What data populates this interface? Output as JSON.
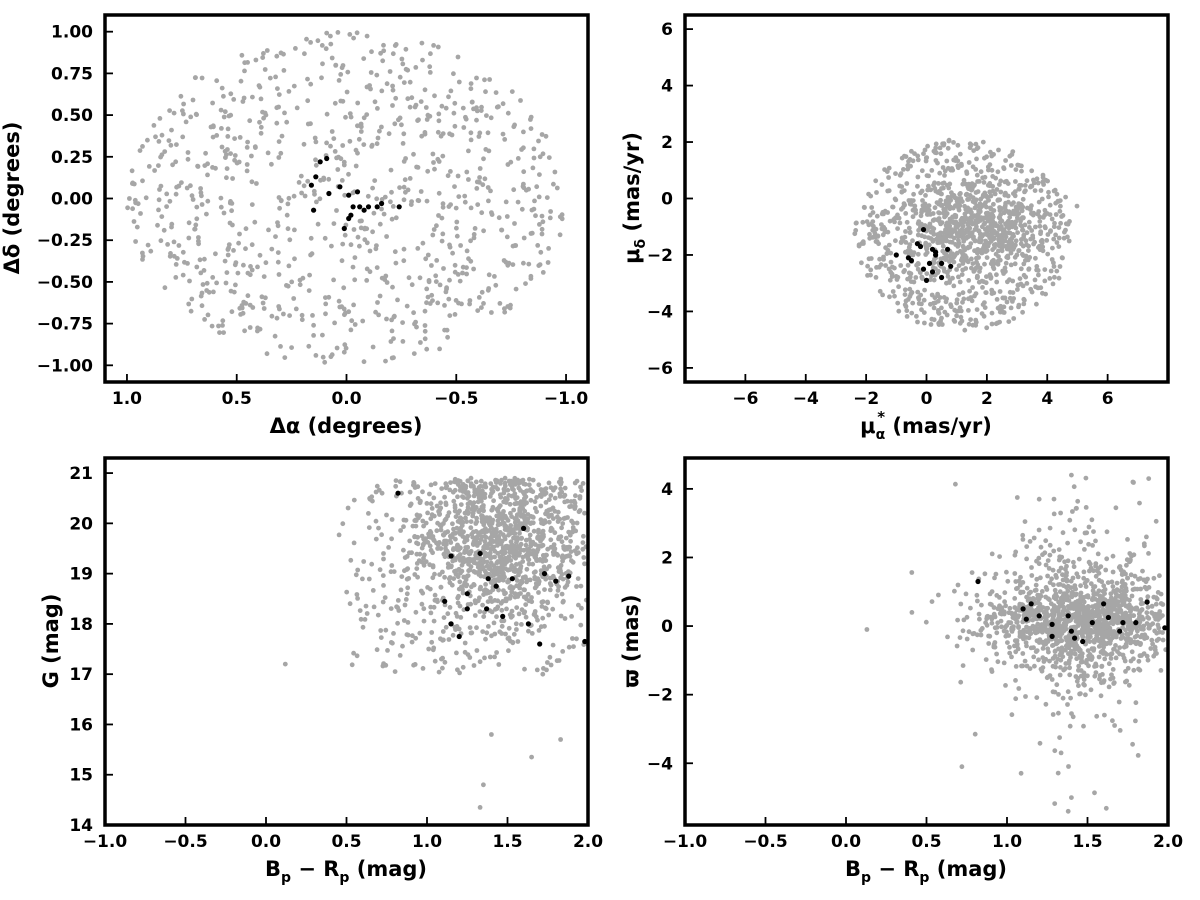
{
  "chart_data": [
    {
      "id": "position",
      "type": "scatter",
      "xlabel": "Δα (degrees)",
      "ylabel": "Δδ (degrees)",
      "xlim": [
        1.1,
        -1.1
      ],
      "ylim": [
        -1.1,
        1.1
      ],
      "xticks": [
        1.0,
        0.5,
        0.0,
        -0.5,
        -1.0
      ],
      "xtick_labels": [
        "1.0",
        "0.5",
        "0.0",
        "−0.5",
        "−1.0"
      ],
      "yticks": [
        -1.0,
        -0.75,
        -0.5,
        -0.25,
        0.0,
        0.25,
        0.5,
        0.75,
        1.0
      ],
      "ytick_labels": [
        "−1.00",
        "−0.75",
        "−0.50",
        "−0.25",
        "0.00",
        "0.25",
        "0.50",
        "0.75",
        "1.00"
      ],
      "grid": false,
      "series": [
        {
          "role": "field",
          "color": "#a6a6a6",
          "distribution": {
            "kind": "disk",
            "n": 900,
            "center": [
              0,
              0
            ],
            "radius": 1.0,
            "seed": 11
          }
        },
        {
          "role": "members",
          "color": "#000000",
          "points": [
            [
              0.12,
              0.22
            ],
            [
              0.09,
              0.24
            ],
            [
              0.14,
              0.13
            ],
            [
              0.16,
              0.08
            ],
            [
              0.15,
              -0.07
            ],
            [
              0.08,
              0.03
            ],
            [
              0.03,
              0.07
            ],
            [
              -0.01,
              0.02
            ],
            [
              -0.05,
              0.04
            ],
            [
              -0.03,
              -0.05
            ],
            [
              -0.02,
              -0.1
            ],
            [
              -0.01,
              -0.12
            ],
            [
              0.01,
              -0.18
            ],
            [
              -0.06,
              -0.05
            ],
            [
              -0.08,
              -0.07
            ],
            [
              -0.1,
              -0.05
            ],
            [
              -0.14,
              -0.05
            ],
            [
              -0.16,
              -0.03
            ],
            [
              -0.24,
              -0.05
            ]
          ]
        }
      ]
    },
    {
      "id": "proper-motion",
      "type": "scatter",
      "xlabel_main": "μ",
      "xlabel_sub": "α",
      "xlabel_sup": "*",
      "xlabel_unit": " (mas/yr)",
      "ylabel_main": "μ",
      "ylabel_sub": "δ",
      "ylabel_unit": " (mas/yr)",
      "xlim": [
        -8,
        8
      ],
      "ylim": [
        -6.5,
        6.5
      ],
      "xticks": [
        -6,
        -4,
        -2,
        0,
        2,
        4,
        6
      ],
      "xtick_labels": [
        "−6",
        "−4",
        "−2",
        "0",
        "2",
        "4",
        "6"
      ],
      "yticks": [
        -6,
        -4,
        -2,
        0,
        2,
        4,
        6
      ],
      "ytick_labels": [
        "−6",
        "−4",
        "−2",
        "0",
        "2",
        "4",
        "6"
      ],
      "grid": false,
      "series": [
        {
          "role": "field",
          "color": "#a6a6a6",
          "distribution": {
            "kind": "ellipse-mix",
            "n": 1300,
            "center": [
              1.2,
              -1.3
            ],
            "radii": [
              3.6,
              3.4
            ],
            "core": [
              1.6,
              -1.0
            ],
            "seed": 23
          }
        },
        {
          "role": "members",
          "color": "#000000",
          "points": [
            [
              -0.1,
              -1.1
            ],
            [
              -0.3,
              -1.6
            ],
            [
              0.2,
              -1.8
            ],
            [
              0.7,
              -1.8
            ],
            [
              0.3,
              -2.0
            ],
            [
              -0.6,
              -2.1
            ],
            [
              -1.0,
              -2.0
            ],
            [
              0.1,
              -2.3
            ],
            [
              0.5,
              -2.3
            ],
            [
              0.8,
              -2.4
            ],
            [
              -0.1,
              -2.5
            ],
            [
              0.2,
              -2.6
            ],
            [
              0.5,
              -2.8
            ],
            [
              0.0,
              -2.9
            ],
            [
              -0.5,
              -2.2
            ],
            [
              -0.2,
              -1.7
            ],
            [
              0.3,
              -1.9
            ]
          ]
        }
      ]
    },
    {
      "id": "cmd",
      "type": "scatter",
      "xlabel_main": "B",
      "xlabel_sub": "p",
      "xlabel_mid": " − R",
      "xlabel_sub2": "p",
      "xlabel_unit": " (mag)",
      "ylabel": "G (mag)",
      "xlim": [
        -1.0,
        2.0
      ],
      "ylim": [
        14,
        21.3
      ],
      "xticks": [
        -1.0,
        -0.5,
        0.0,
        0.5,
        1.0,
        1.5,
        2.0
      ],
      "xtick_labels": [
        "−1.0",
        "−0.5",
        "0.0",
        "0.5",
        "1.0",
        "1.5",
        "2.0"
      ],
      "yticks": [
        14,
        15,
        16,
        17,
        18,
        19,
        20,
        21
      ],
      "ytick_labels": [
        "14",
        "15",
        "16",
        "17",
        "18",
        "19",
        "20",
        "21"
      ],
      "grid": false,
      "series": [
        {
          "role": "field",
          "color": "#a6a6a6",
          "distribution": {
            "kind": "cmd",
            "n": 1400,
            "seed": 37
          }
        },
        {
          "role": "members",
          "color": "#000000",
          "points": [
            [
              0.82,
              20.6
            ],
            [
              1.6,
              19.9
            ],
            [
              1.15,
              19.35
            ],
            [
              1.33,
              19.4
            ],
            [
              1.38,
              18.9
            ],
            [
              1.53,
              18.9
            ],
            [
              1.73,
              19.0
            ],
            [
              1.43,
              18.75
            ],
            [
              1.8,
              18.85
            ],
            [
              1.88,
              18.95
            ],
            [
              1.25,
              18.6
            ],
            [
              1.11,
              18.45
            ],
            [
              1.25,
              18.3
            ],
            [
              1.37,
              18.3
            ],
            [
              1.47,
              18.15
            ],
            [
              1.15,
              18.0
            ],
            [
              1.63,
              18.0
            ],
            [
              1.2,
              17.75
            ],
            [
              1.7,
              17.6
            ],
            [
              1.98,
              17.65
            ]
          ]
        }
      ]
    },
    {
      "id": "parallax",
      "type": "scatter",
      "xlabel_main": "B",
      "xlabel_sub": "p",
      "xlabel_mid": " − R",
      "xlabel_sub2": "p",
      "xlabel_unit": " (mag)",
      "ylabel": "ϖ (mas)",
      "xlim": [
        -1.0,
        2.0
      ],
      "ylim": [
        -5.8,
        4.9
      ],
      "xticks": [
        -1.0,
        -0.5,
        0.0,
        0.5,
        1.0,
        1.5,
        2.0
      ],
      "xtick_labels": [
        "−1.0",
        "−0.5",
        "0.0",
        "0.5",
        "1.0",
        "1.5",
        "2.0"
      ],
      "yticks": [
        -4,
        -2,
        0,
        2,
        4
      ],
      "ytick_labels": [
        "−4",
        "−2",
        "0",
        "2",
        "4"
      ],
      "grid": false,
      "series": [
        {
          "role": "field",
          "color": "#a6a6a6",
          "distribution": {
            "kind": "parallax",
            "n": 1400,
            "seed": 53
          }
        },
        {
          "role": "members",
          "color": "#000000",
          "points": [
            [
              0.82,
              1.3
            ],
            [
              1.1,
              0.5
            ],
            [
              1.15,
              0.65
            ],
            [
              1.12,
              0.2
            ],
            [
              1.2,
              0.3
            ],
            [
              1.28,
              -0.3
            ],
            [
              1.28,
              0.05
            ],
            [
              1.38,
              0.3
            ],
            [
              1.4,
              -0.15
            ],
            [
              1.42,
              -0.35
            ],
            [
              1.47,
              -0.45
            ],
            [
              1.53,
              0.1
            ],
            [
              1.6,
              0.65
            ],
            [
              1.63,
              0.25
            ],
            [
              1.7,
              -0.15
            ],
            [
              1.72,
              0.1
            ],
            [
              1.8,
              0.1
            ],
            [
              1.87,
              0.7
            ],
            [
              1.98,
              -0.05
            ]
          ]
        }
      ]
    }
  ]
}
